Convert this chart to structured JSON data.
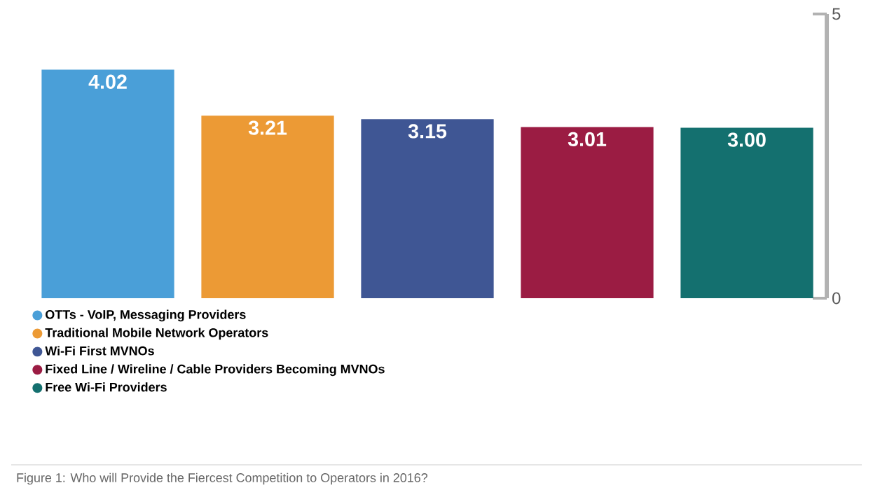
{
  "chart_data": {
    "type": "bar",
    "stacked": true,
    "categories": [
      null,
      null,
      null,
      null,
      null
    ],
    "series": [
      {
        "name": "OTTs - VoIP, Messaging Providers",
        "color": "#4a9fd8",
        "values": [
          4.02,
          null,
          null,
          null,
          null
        ],
        "value_labels": [
          "4.02",
          null,
          null,
          null,
          null
        ]
      },
      {
        "name": "Traditional Mobile Network Operators",
        "color": "#ec9a35",
        "values": [
          null,
          3.21,
          null,
          null,
          null
        ],
        "value_labels": [
          null,
          "3.21",
          null,
          null,
          null
        ]
      },
      {
        "name": "Wi-Fi First MVNOs",
        "color": "#3f5694",
        "values": [
          null,
          null,
          3.15,
          null,
          null
        ],
        "value_labels": [
          null,
          null,
          "3.15",
          null,
          null
        ]
      },
      {
        "name": "Fixed Line / Wireline / Cable Providers Becoming MVNOs",
        "color": "#9b1c43",
        "values": [
          null,
          null,
          null,
          3.01,
          null
        ],
        "value_labels": [
          null,
          null,
          null,
          "3.01",
          null
        ]
      },
      {
        "name": "Free Wi-Fi Providers",
        "color": "#14706f",
        "values": [
          null,
          null,
          null,
          null,
          3.0
        ],
        "value_labels": [
          null,
          null,
          null,
          null,
          "3.00"
        ]
      }
    ],
    "ylim": [
      0,
      5
    ],
    "yticks": [
      {
        "value": 0,
        "label": "0"
      },
      {
        "value": 5,
        "label": "5"
      }
    ],
    "legend": "bottom left",
    "grid": false,
    "annotations": [
      "Figure 1: Who will Provide the Fiercest Competition to Operators in 2016?"
    ]
  }
}
